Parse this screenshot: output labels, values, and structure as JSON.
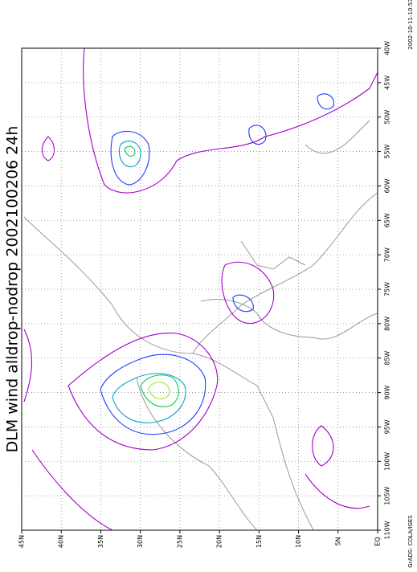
{
  "map": {
    "title": "DLM wind alldrop-nodrop 2002100206 24h",
    "lon_labels": [
      "40W",
      "45W",
      "50W",
      "55W",
      "60W",
      "65W",
      "70W",
      "75W",
      "80W",
      "85W",
      "90W",
      "95W",
      "100W",
      "105W",
      "110W"
    ],
    "lat_labels": [
      "45N",
      "40N",
      "35N",
      "30N",
      "25N",
      "20N",
      "15N",
      "10N",
      "5N",
      "EQ"
    ],
    "credit": "GrADS: COLA/IGES",
    "timestamp": "2002-10-11-10:53"
  }
}
